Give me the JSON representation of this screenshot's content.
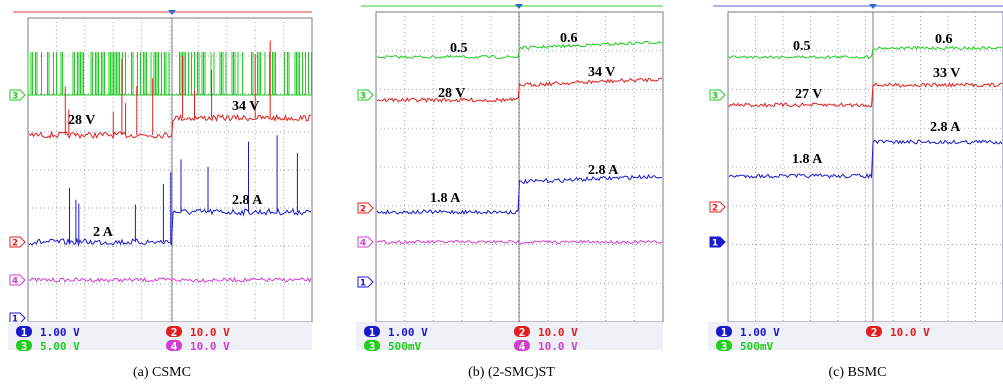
{
  "panels": [
    {
      "caption": "(a) CSMC",
      "annotations": [
        "28 V",
        "34 V",
        "2 A",
        "2.8 A"
      ],
      "markers": [
        "3",
        "2",
        "4",
        "1"
      ],
      "channels": [
        {
          "id": "1",
          "scale": "1.00 V"
        },
        {
          "id": "2",
          "scale": "10.0 V"
        },
        {
          "id": "3",
          "scale": "5.00 V"
        },
        {
          "id": "4",
          "scale": "10.0 V"
        }
      ]
    },
    {
      "caption": "(b) (2-SMC)ST",
      "annotations": [
        "0.5",
        "0.6",
        "28 V",
        "34 V",
        "1.8 A",
        "2.8 A"
      ],
      "markers": [
        "3",
        "2",
        "4",
        "1"
      ],
      "channels": [
        {
          "id": "1",
          "scale": "1.00 V"
        },
        {
          "id": "2",
          "scale": "10.0 V"
        },
        {
          "id": "3",
          "scale": "500mV"
        },
        {
          "id": "4",
          "scale": "10.0 V"
        }
      ]
    },
    {
      "caption": "(c) BSMC",
      "annotations": [
        "0.5",
        "0.6",
        "27 V",
        "33 V",
        "1.8 A",
        "2.8 A"
      ],
      "markers": [
        "3",
        "2",
        "1"
      ],
      "channels": [
        {
          "id": "1",
          "scale": "1.00 V"
        },
        {
          "id": "2",
          "scale": "10.0 V"
        },
        {
          "id": "3",
          "scale": "500mV"
        }
      ]
    }
  ]
}
